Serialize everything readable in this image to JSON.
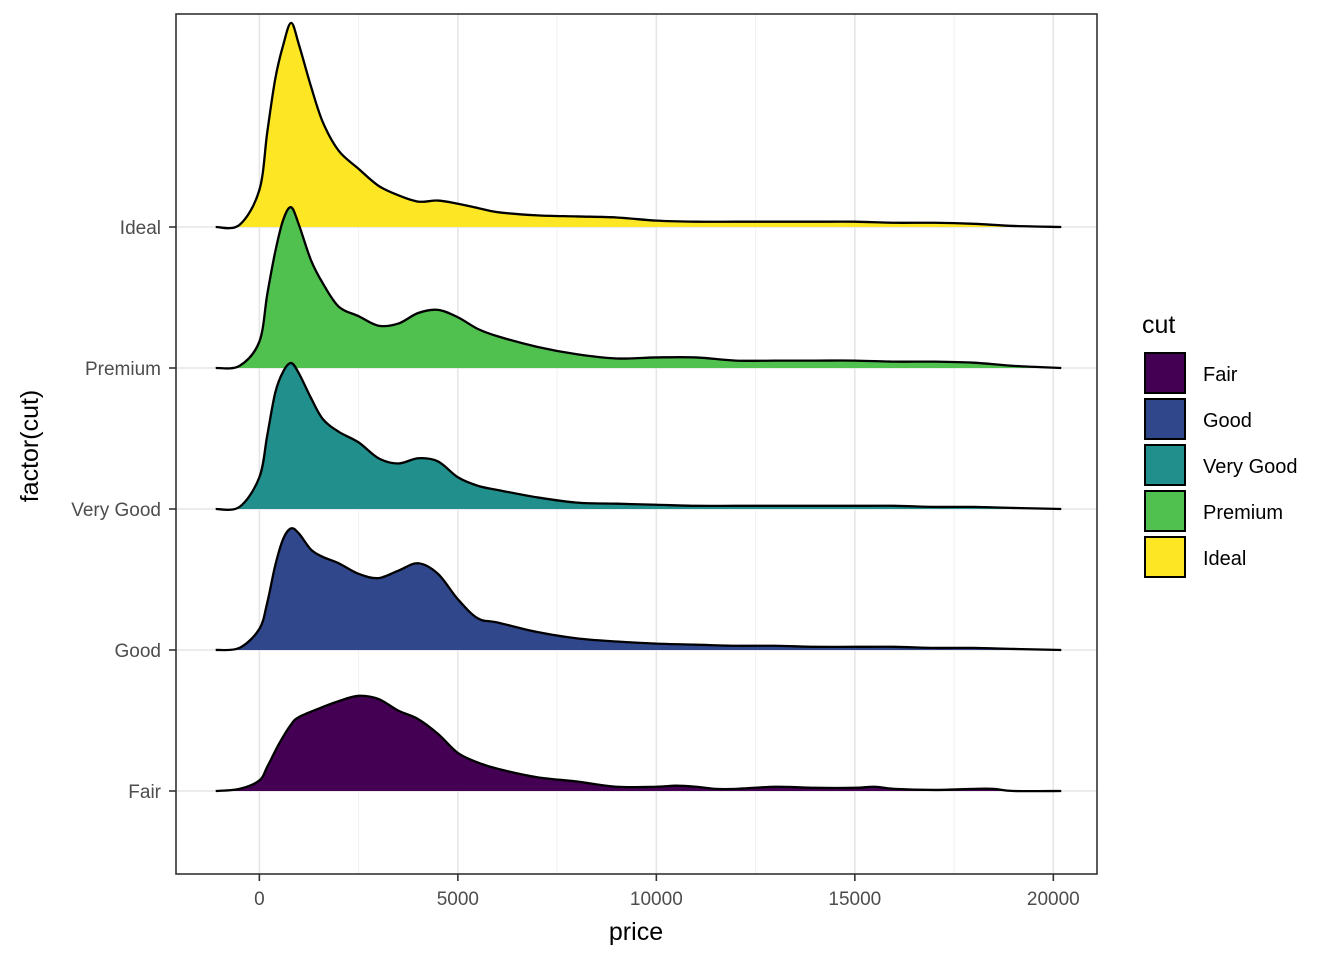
{
  "chart_data": {
    "type": "area",
    "subtype": "ridgeline-density",
    "xlabel": "price",
    "ylabel": "factor(cut)",
    "xlim": [
      -2100,
      21100
    ],
    "x_ticks": [
      0,
      5000,
      10000,
      15000,
      20000
    ],
    "x_tick_labels": [
      "0",
      "5000",
      "10000",
      "15000",
      "20000"
    ],
    "categories": [
      "Fair",
      "Good",
      "Very Good",
      "Premium",
      "Ideal"
    ],
    "ridge_scale_relative_to_spacing": 1.5,
    "grid": true,
    "theme": "bw",
    "legend": {
      "title": "cut",
      "position": "right",
      "entries": [
        "Fair",
        "Good",
        "Very Good",
        "Premium",
        "Ideal"
      ]
    },
    "series": [
      {
        "name": "Fair",
        "color": "#440154",
        "x": [
          -1100,
          -500,
          0,
          200,
          500,
          800,
          1000,
          1500,
          2000,
          2500,
          3000,
          3500,
          4000,
          4500,
          5000,
          5500,
          6000,
          7000,
          8000,
          9000,
          10000,
          10500,
          11000,
          11500,
          12000,
          13000,
          14000,
          15000,
          15500,
          16000,
          17000,
          18000,
          18500,
          19000,
          20200
        ],
        "y": [
          0.0,
          0.02,
          0.1,
          0.23,
          0.45,
          0.63,
          0.7,
          0.78,
          0.85,
          0.9,
          0.87,
          0.76,
          0.68,
          0.54,
          0.36,
          0.27,
          0.21,
          0.13,
          0.09,
          0.04,
          0.04,
          0.05,
          0.04,
          0.02,
          0.02,
          0.04,
          0.03,
          0.03,
          0.04,
          0.02,
          0.01,
          0.02,
          0.02,
          0.0,
          0.0
        ]
      },
      {
        "name": "Good",
        "color": "#31478c",
        "x": [
          -1100,
          -500,
          0,
          200,
          400,
          600,
          800,
          1000,
          1300,
          1600,
          2000,
          2500,
          3000,
          3500,
          4000,
          4500,
          5000,
          5500,
          6000,
          7000,
          8000,
          9000,
          10000,
          11000,
          12000,
          13000,
          14000,
          15000,
          16000,
          17000,
          18000,
          19000,
          20200
        ],
        "y": [
          0.0,
          0.02,
          0.2,
          0.45,
          0.8,
          1.05,
          1.15,
          1.1,
          0.95,
          0.88,
          0.82,
          0.72,
          0.68,
          0.75,
          0.82,
          0.72,
          0.48,
          0.3,
          0.26,
          0.17,
          0.11,
          0.08,
          0.06,
          0.05,
          0.04,
          0.04,
          0.03,
          0.03,
          0.03,
          0.02,
          0.02,
          0.01,
          0.0
        ]
      },
      {
        "name": "Very Good",
        "color": "#21908d",
        "x": [
          -1100,
          -500,
          0,
          200,
          400,
          600,
          800,
          1000,
          1300,
          1600,
          2000,
          2500,
          3000,
          3500,
          4000,
          4500,
          5000,
          5500,
          6000,
          7000,
          8000,
          9000,
          10000,
          11000,
          12000,
          13000,
          14000,
          15000,
          16000,
          17000,
          18000,
          19000,
          20200
        ],
        "y": [
          0.0,
          0.02,
          0.3,
          0.7,
          1.1,
          1.3,
          1.38,
          1.28,
          1.05,
          0.85,
          0.73,
          0.63,
          0.48,
          0.43,
          0.48,
          0.45,
          0.3,
          0.22,
          0.18,
          0.11,
          0.06,
          0.05,
          0.04,
          0.03,
          0.03,
          0.03,
          0.03,
          0.03,
          0.03,
          0.02,
          0.02,
          0.01,
          0.0
        ]
      },
      {
        "name": "Premium",
        "color": "#50c04f",
        "x": [
          -1100,
          -500,
          0,
          200,
          400,
          600,
          800,
          1000,
          1300,
          1600,
          2000,
          2500,
          3000,
          3500,
          4000,
          4500,
          5000,
          5500,
          6000,
          7000,
          8000,
          9000,
          10000,
          11000,
          12000,
          13000,
          14000,
          15000,
          16000,
          17000,
          18000,
          19000,
          20200
        ],
        "y": [
          0.0,
          0.02,
          0.25,
          0.7,
          1.1,
          1.4,
          1.52,
          1.35,
          1.02,
          0.8,
          0.58,
          0.49,
          0.4,
          0.42,
          0.52,
          0.55,
          0.48,
          0.37,
          0.3,
          0.2,
          0.13,
          0.09,
          0.1,
          0.1,
          0.07,
          0.07,
          0.07,
          0.07,
          0.06,
          0.06,
          0.05,
          0.02,
          0.0
        ]
      },
      {
        "name": "Ideal",
        "color": "#fde725",
        "x": [
          -1100,
          -500,
          0,
          200,
          400,
          600,
          800,
          1000,
          1300,
          1600,
          2000,
          2500,
          3000,
          3500,
          4000,
          4500,
          5000,
          5500,
          6000,
          7000,
          8000,
          9000,
          10000,
          11000,
          12000,
          13000,
          14000,
          15000,
          16000,
          17000,
          18000,
          19000,
          20200
        ],
        "y": [
          0.0,
          0.02,
          0.35,
          0.9,
          1.4,
          1.72,
          1.93,
          1.72,
          1.33,
          0.99,
          0.72,
          0.55,
          0.39,
          0.3,
          0.24,
          0.25,
          0.22,
          0.18,
          0.14,
          0.11,
          0.1,
          0.09,
          0.06,
          0.05,
          0.05,
          0.05,
          0.05,
          0.05,
          0.04,
          0.04,
          0.03,
          0.01,
          0.0
        ]
      }
    ]
  }
}
